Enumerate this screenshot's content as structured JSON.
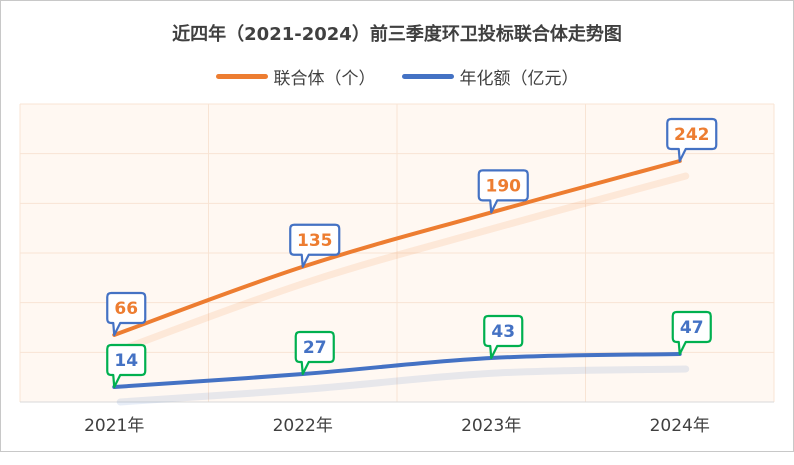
{
  "chart_data": {
    "type": "line",
    "title": "近四年（2021-2024）前三季度环卫投标联合体走势图",
    "categories": [
      "2021年",
      "2022年",
      "2023年",
      "2024年"
    ],
    "series": [
      {
        "name": "联合体（个）",
        "values": [
          66,
          135,
          190,
          242
        ],
        "color": "#ED7D31",
        "label_border": "#4472C4",
        "label_text": "#ED7D31",
        "axis": "left"
      },
      {
        "name": "年化额（亿元）",
        "values": [
          14,
          27,
          43,
          47
        ],
        "color": "#4472C4",
        "label_border": "#00B050",
        "label_text": "#4472C4",
        "axis": "right"
      }
    ],
    "grid": true,
    "legend_position": "top"
  }
}
